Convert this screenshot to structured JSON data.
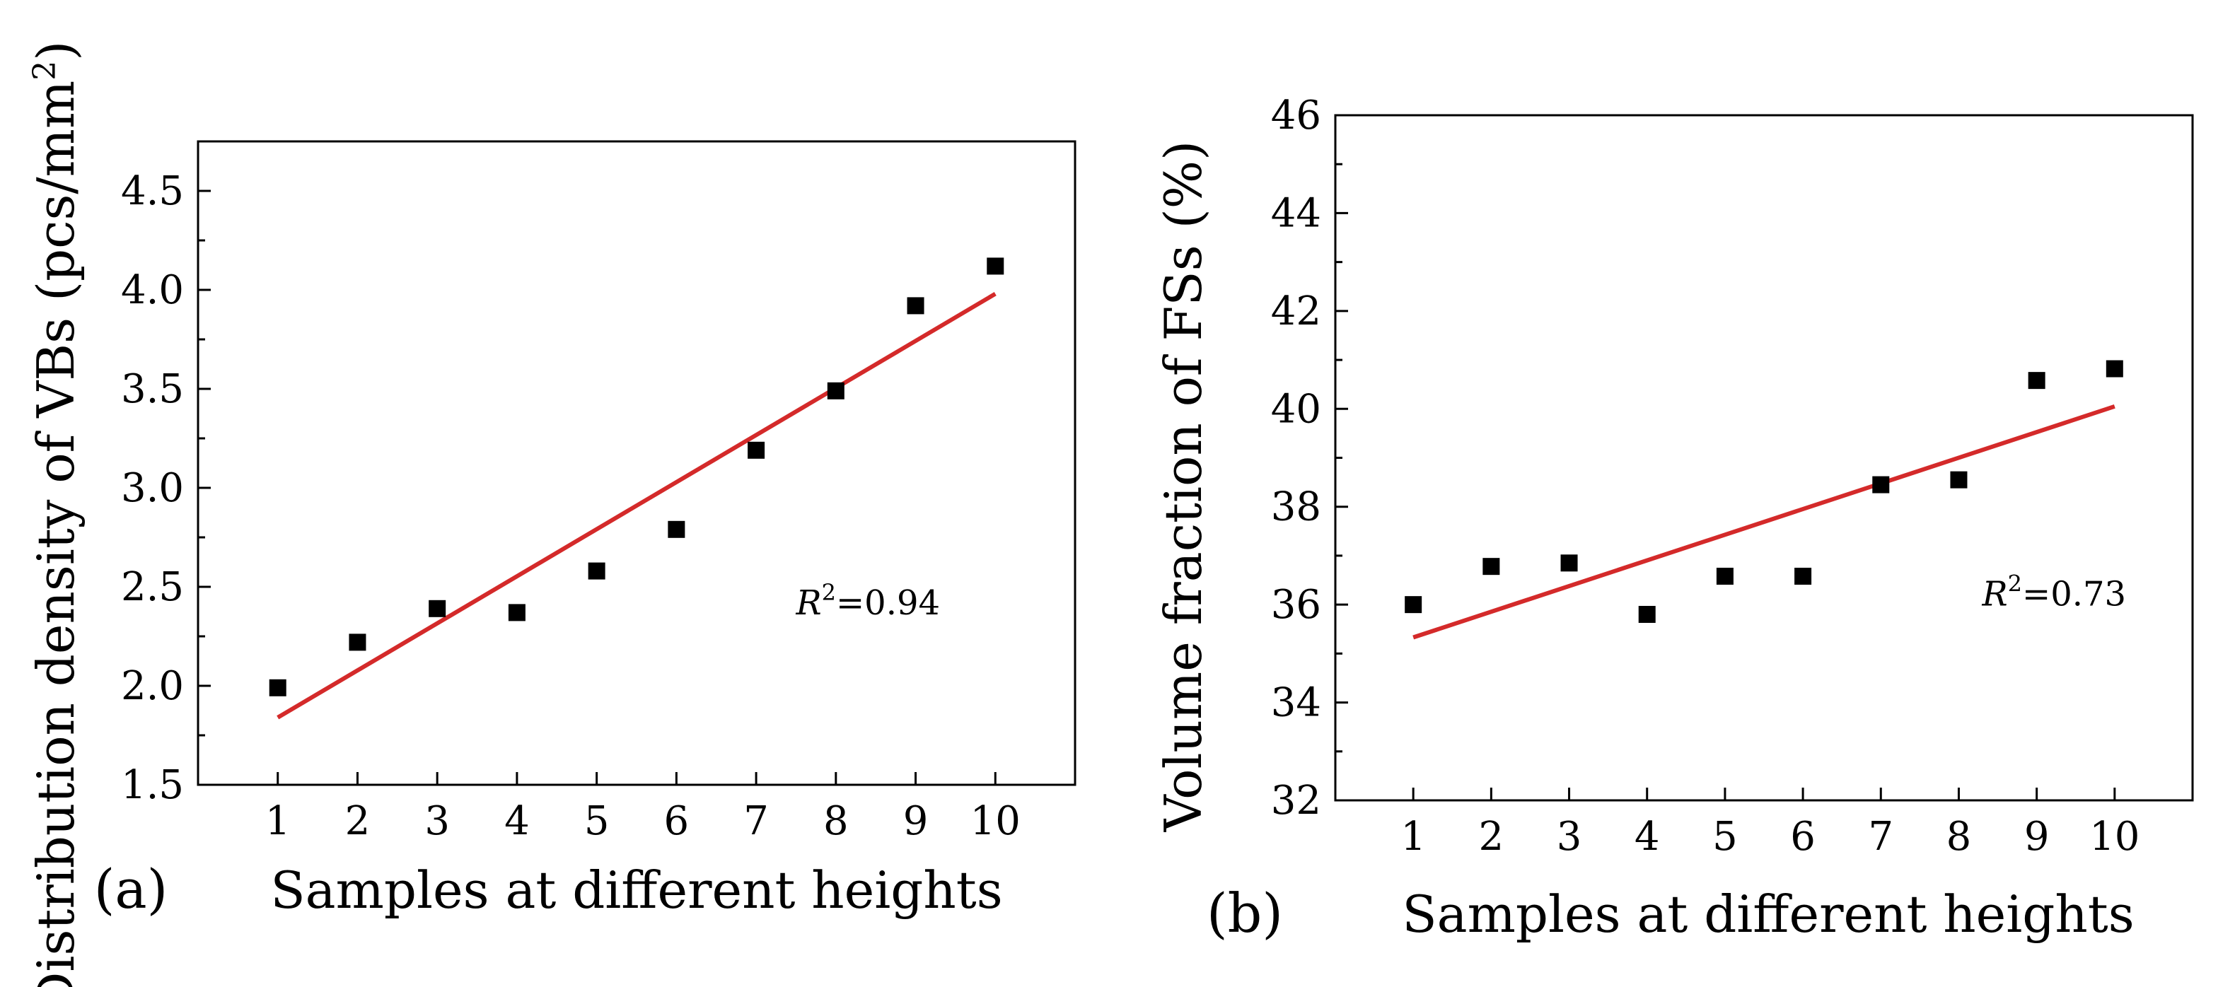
{
  "chart_data": [
    {
      "type": "scatter",
      "panel_label": "(a)",
      "xlabel": "Samples at different heights",
      "ylabel": "Distribution density of VBs (pcs/mm",
      "ylabel_sup": "2",
      "ylabel_close": ")",
      "xlim": [
        0,
        11
      ],
      "ylim": [
        1.5,
        4.75
      ],
      "x_ticks": [
        1,
        2,
        3,
        4,
        5,
        6,
        7,
        8,
        9,
        10
      ],
      "x_tick_labels": [
        "1",
        "2",
        "3",
        "4",
        "5",
        "6",
        "7",
        "8",
        "9",
        "10"
      ],
      "y_ticks": [
        1.5,
        2.0,
        2.5,
        3.0,
        3.5,
        4.0,
        4.5
      ],
      "y_tick_labels": [
        "1.5",
        "2.0",
        "2.5",
        "3.0",
        "3.5",
        "4.0",
        "4.5"
      ],
      "series": [
        {
          "name": "samples",
          "x": [
            1,
            2,
            3,
            4,
            5,
            6,
            7,
            8,
            9,
            10
          ],
          "values": [
            1.99,
            2.22,
            2.39,
            2.37,
            2.58,
            2.79,
            3.19,
            3.49,
            3.92,
            4.12
          ]
        }
      ],
      "fit": {
        "x": [
          1,
          10
        ],
        "y": [
          1.84,
          3.98
        ]
      },
      "annotation_italic": "R",
      "annotation_sup": "2",
      "annotation_rest": "=0.94",
      "annotation_at": [
        7.5,
        2.36
      ]
    },
    {
      "type": "scatter",
      "panel_label": "(b)",
      "xlabel": "Samples at different heights",
      "ylabel": "Volume fraction of FSs (%)",
      "ylabel_sup": "",
      "ylabel_close": "",
      "xlim": [
        0,
        11
      ],
      "ylim": [
        32,
        46
      ],
      "x_ticks": [
        1,
        2,
        3,
        4,
        5,
        6,
        7,
        8,
        9,
        10
      ],
      "x_tick_labels": [
        "1",
        "2",
        "3",
        "4",
        "5",
        "6",
        "7",
        "8",
        "9",
        "10"
      ],
      "y_ticks": [
        32,
        34,
        36,
        38,
        40,
        42,
        44,
        46
      ],
      "y_tick_labels": [
        "32",
        "34",
        "36",
        "38",
        "40",
        "42",
        "44",
        "46"
      ],
      "series": [
        {
          "name": "samples",
          "x": [
            1,
            2,
            3,
            4,
            5,
            6,
            7,
            8,
            9,
            10
          ],
          "values": [
            36.0,
            36.78,
            36.85,
            35.8,
            36.58,
            36.58,
            38.45,
            38.55,
            40.58,
            40.82
          ]
        }
      ],
      "fit": {
        "x": [
          1,
          10
        ],
        "y": [
          35.33,
          40.05
        ]
      },
      "annotation_italic": "R",
      "annotation_sup": "2",
      "annotation_rest": "=0.73",
      "annotation_at": [
        8.3,
        35.98
      ]
    }
  ],
  "colors": {
    "marker": "#000000",
    "fit_line": "#d42a2a",
    "axis": "#000000"
  }
}
